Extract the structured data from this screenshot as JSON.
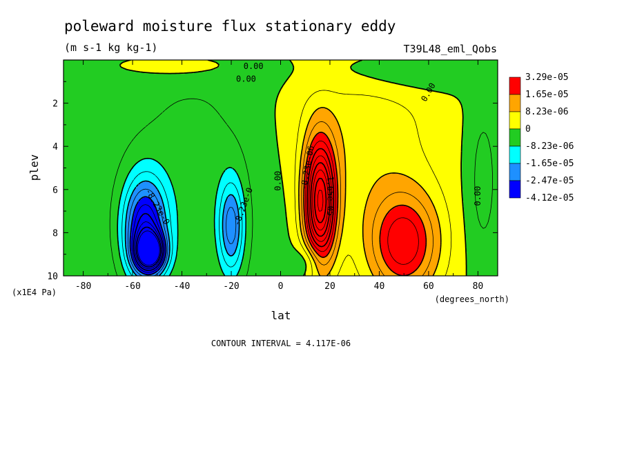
{
  "chart_data": {
    "type": "heatmap",
    "title": "poleward moisture flux stationary eddy",
    "units": "(m s-1 kg kg-1)",
    "run_label": "T39L48_eml_Qobs",
    "xlabel": "lat",
    "x_unit_label": "(degrees_north)",
    "ylabel": "plev",
    "y_unit_label": "(x1E4 Pa)",
    "xlim": [
      -88,
      88
    ],
    "ylim": [
      10,
      0
    ],
    "x_ticks": [
      -80,
      -60,
      -40,
      -20,
      0,
      20,
      40,
      60,
      80
    ],
    "y_ticks": [
      2,
      4,
      6,
      8,
      10
    ],
    "contour_interval_text": "CONTOUR INTERVAL = 4.117E-06",
    "legend": {
      "placement": "right",
      "colors": [
        "#ff0000",
        "#ffa500",
        "#ffff00",
        "#22cc22",
        "#00ffff",
        "#1e90ff",
        "#0000ff"
      ],
      "labels": [
        "3.29e-05",
        "1.65e-05",
        "8.23e-06",
        "0",
        "-8.23e-06",
        "-1.65e-05",
        "-2.47e-05",
        "-4.12e-05"
      ]
    },
    "contour_labels": [
      {
        "text": "0.00",
        "lat": -11,
        "plev": 0.3,
        "rot": 0
      },
      {
        "text": "0.00",
        "lat": -14,
        "plev": 0.9,
        "rot": 0
      },
      {
        "text": "0.00",
        "lat": 60,
        "plev": 1.5,
        "rot": -60
      },
      {
        "text": "0.00",
        "lat": -1,
        "plev": 5.6,
        "rot": -90
      },
      {
        "text": "0.00",
        "lat": 80,
        "plev": 6.3,
        "rot": -90
      },
      {
        "text": "-8.23e-0",
        "lat": -50,
        "plev": 6.8,
        "rot": 60
      },
      {
        "text": "-8.23e-0",
        "lat": -15,
        "plev": 6.8,
        "rot": -70
      },
      {
        "text": "-8.23e-06",
        "lat": 11,
        "plev": 5.0,
        "rot": -80
      },
      {
        "text": "1.65e-05",
        "lat": 20,
        "plev": 6.3,
        "rot": 90
      }
    ],
    "features": [
      {
        "lat": -53,
        "plev": 8.9,
        "value": -4.2e-05,
        "slat": 4,
        "splev": 0.6
      },
      {
        "lat": -55,
        "plev": 7.8,
        "value": -3.1e-05,
        "slat": 6,
        "splev": 1.6
      },
      {
        "lat": -20,
        "plev": 7.7,
        "value": -1.9e-05,
        "slat": 3.5,
        "splev": 1.5
      },
      {
        "lat": 16,
        "plev": 6.6,
        "value": 4.4e-05,
        "slat": 4.5,
        "splev": 2.0
      },
      {
        "lat": 50,
        "plev": 8.5,
        "value": 2.3e-05,
        "slat": 10,
        "splev": 1.7
      },
      {
        "lat": 32,
        "plev": 3.3,
        "value": 7e-06,
        "slat": 22,
        "splev": 3.5
      },
      {
        "lat": -35,
        "plev": 6.0,
        "value": -6e-06,
        "slat": 25,
        "splev": 5.0
      },
      {
        "lat": 12,
        "plev": 9.3,
        "value": -8e-06,
        "slat": 4,
        "splev": 0.6
      },
      {
        "lat": 82,
        "plev": 5.5,
        "value": -6e-06,
        "slat": 5,
        "splev": 3.0
      },
      {
        "lat": 45,
        "plev": 0.5,
        "value": -6e-06,
        "slat": 25,
        "splev": 0.8
      },
      {
        "lat": -40,
        "plev": 0.3,
        "value": 4e-06,
        "slat": 18,
        "splev": 0.5
      }
    ]
  }
}
